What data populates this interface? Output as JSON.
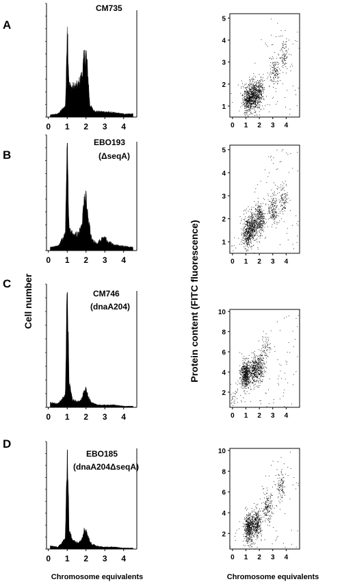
{
  "figure": {
    "y_label_left": "Cell number",
    "y_label_right": "Protein content (FITC fluorescence)",
    "x_label_left": "Chromosome equivalents",
    "x_label_right": "Chromosome equivalents"
  },
  "chart_data": [
    {
      "type": "area",
      "panel": "A",
      "strain": "CM735",
      "genotype": "",
      "x": [
        0.1,
        0.5,
        0.9,
        0.95,
        1.0,
        1.05,
        1.1,
        1.2,
        1.4,
        1.6,
        1.8,
        1.9,
        2.0,
        2.1,
        2.2,
        2.4,
        2.7,
        3.0,
        3.5,
        4.0,
        4.5
      ],
      "y": [
        0.02,
        0.03,
        0.1,
        0.35,
        0.95,
        0.6,
        0.3,
        0.28,
        0.28,
        0.3,
        0.4,
        0.55,
        0.6,
        0.4,
        0.12,
        0.06,
        0.05,
        0.05,
        0.04,
        0.03,
        0.03
      ],
      "xlim": [
        -0.1,
        4.7
      ],
      "xticks": [
        "0",
        "1",
        "2",
        "3",
        "4"
      ]
    },
    {
      "type": "scatter",
      "panel": "A",
      "strain": "CM735",
      "xlim": [
        -0.2,
        5.0
      ],
      "ylim": [
        0.5,
        5.2
      ],
      "xticks": [
        "0",
        "1",
        "2",
        "3",
        "4"
      ],
      "yticks": [
        "1",
        "2",
        "3",
        "4",
        "5"
      ],
      "clusters": [
        {
          "x": 1.1,
          "y": 1.3,
          "n": 300
        },
        {
          "x": 1.5,
          "y": 1.45,
          "n": 400
        },
        {
          "x": 1.95,
          "y": 1.6,
          "n": 250
        },
        {
          "x": 3.1,
          "y": 2.6,
          "n": 120
        },
        {
          "x": 3.8,
          "y": 3.3,
          "n": 80
        }
      ]
    },
    {
      "type": "area",
      "panel": "B",
      "strain": "EBO193",
      "genotype": "(ΔseqA)",
      "x": [
        0.1,
        0.5,
        0.9,
        0.95,
        1.0,
        1.05,
        1.1,
        1.3,
        1.6,
        1.8,
        1.9,
        2.0,
        2.1,
        2.3,
        2.6,
        2.8,
        3.0,
        3.2,
        3.5,
        4.0,
        4.5
      ],
      "y": [
        0.03,
        0.04,
        0.15,
        0.6,
        1.0,
        0.55,
        0.2,
        0.15,
        0.15,
        0.25,
        0.45,
        0.5,
        0.3,
        0.1,
        0.07,
        0.1,
        0.12,
        0.08,
        0.05,
        0.04,
        0.03
      ],
      "xlim": [
        -0.1,
        4.7
      ],
      "xticks": [
        "0",
        "1",
        "2",
        "3",
        "4"
      ]
    },
    {
      "type": "scatter",
      "panel": "B",
      "strain": "EBO193",
      "xlim": [
        -0.2,
        5.0
      ],
      "ylim": [
        0.5,
        5.2
      ],
      "xticks": [
        "0",
        "1",
        "2",
        "3",
        "4"
      ],
      "yticks": [
        "1",
        "2",
        "3",
        "4",
        "5"
      ],
      "clusters": [
        {
          "x": 1.1,
          "y": 1.4,
          "n": 350
        },
        {
          "x": 1.5,
          "y": 1.7,
          "n": 250
        },
        {
          "x": 2.0,
          "y": 2.0,
          "n": 300
        },
        {
          "x": 3.0,
          "y": 2.4,
          "n": 160
        },
        {
          "x": 3.8,
          "y": 2.9,
          "n": 100
        }
      ]
    },
    {
      "type": "area",
      "panel": "C",
      "strain": "CM746",
      "genotype": "(dnaA204)",
      "x": [
        0.1,
        0.5,
        0.9,
        0.95,
        1.0,
        1.05,
        1.1,
        1.3,
        1.6,
        1.8,
        1.9,
        2.0,
        2.1,
        2.3,
        2.6,
        3.0,
        3.5,
        4.0,
        4.5
      ],
      "y": [
        0.04,
        0.03,
        0.1,
        0.6,
        1.0,
        0.7,
        0.2,
        0.06,
        0.05,
        0.08,
        0.14,
        0.16,
        0.1,
        0.04,
        0.02,
        0.02,
        0.02,
        0.01,
        0.01
      ],
      "xlim": [
        -0.1,
        4.7
      ],
      "xticks": [
        "0",
        "1",
        "2",
        "3",
        "4"
      ]
    },
    {
      "type": "scatter",
      "panel": "C",
      "strain": "CM746",
      "xlim": [
        -0.2,
        5.0
      ],
      "ylim": [
        0.5,
        10.2
      ],
      "xticks": [
        "0",
        "1",
        "2",
        "3",
        "4"
      ],
      "yticks": [
        "2",
        "4",
        "6",
        "8",
        "10"
      ],
      "clusters": [
        {
          "x": 0.95,
          "y": 3.8,
          "n": 550
        },
        {
          "x": 1.6,
          "y": 4.2,
          "n": 250
        },
        {
          "x": 2.0,
          "y": 4.5,
          "n": 200
        },
        {
          "x": 2.5,
          "y": 6.5,
          "n": 60
        },
        {
          "x": 0.1,
          "y": 1.8,
          "n": 30
        }
      ]
    },
    {
      "type": "area",
      "panel": "D",
      "strain": "EBO185",
      "genotype": "(dnaA204ΔseqA)",
      "x": [
        0.1,
        0.5,
        0.9,
        0.95,
        1.0,
        1.05,
        1.1,
        1.3,
        1.6,
        1.8,
        1.9,
        2.0,
        2.1,
        2.3,
        2.6,
        3.0,
        3.5,
        4.0,
        4.5
      ],
      "y": [
        0.03,
        0.02,
        0.1,
        0.6,
        1.0,
        0.7,
        0.2,
        0.08,
        0.06,
        0.1,
        0.18,
        0.2,
        0.12,
        0.05,
        0.03,
        0.02,
        0.02,
        0.01,
        0.01
      ],
      "xlim": [
        -0.1,
        4.7
      ],
      "xticks": [
        "0",
        "1",
        "2",
        "3",
        "4"
      ]
    },
    {
      "type": "scatter",
      "panel": "D",
      "strain": "EBO185",
      "xlim": [
        -0.2,
        5.0
      ],
      "ylim": [
        0.5,
        10.2
      ],
      "xticks": [
        "0",
        "1",
        "2",
        "3",
        "4"
      ],
      "yticks": [
        "2",
        "4",
        "6",
        "8",
        "10"
      ],
      "clusters": [
        {
          "x": 1.2,
          "y": 2.5,
          "n": 450
        },
        {
          "x": 1.8,
          "y": 3.0,
          "n": 300
        },
        {
          "x": 2.6,
          "y": 4.5,
          "n": 150
        },
        {
          "x": 3.6,
          "y": 6.5,
          "n": 90
        }
      ]
    }
  ]
}
